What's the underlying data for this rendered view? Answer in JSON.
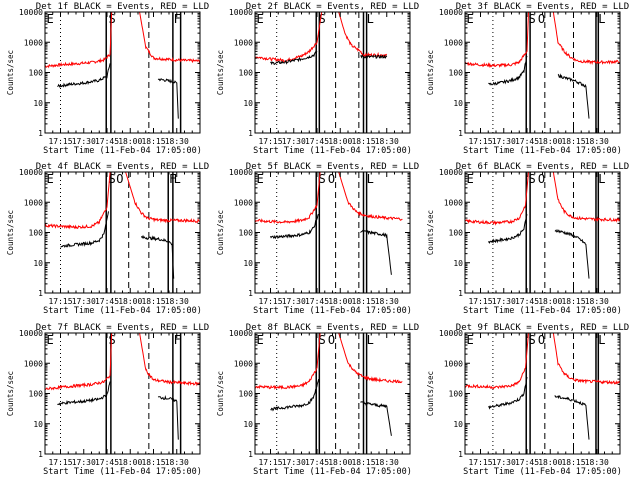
{
  "chart_data": {
    "type": "line",
    "layout": {
      "rows": 3,
      "cols": 3
    },
    "y_scale": "log",
    "ylim": [
      1,
      10000
    ],
    "y_ticks": [
      1,
      10,
      100,
      1000,
      10000
    ],
    "y_tick_labels": [
      "1",
      "10",
      "100",
      "1000",
      "10000"
    ],
    "x_tick_labels": [
      "17:15",
      "17:30",
      "17:45",
      "18:00",
      "18:15",
      "18:30"
    ],
    "x_tick_minutes": [
      0,
      15,
      30,
      45,
      60,
      75
    ],
    "x_range_minutes": [
      -10,
      90
    ],
    "xlabel": "Start Time (11-Feb-04 17:05:00)",
    "ylabel": "Counts/sec",
    "colors": {
      "events": "#000000",
      "lld": "#ff0000"
    },
    "event_marker_labels": [
      "E",
      "S",
      "F",
      "O"
    ],
    "panels": [
      {
        "title": "Det 1f BLACK = Events, RED = LLD",
        "markers": [
          "E",
          "S",
          "F"
        ],
        "series": [
          {
            "color": "#ff0000",
            "x": [
              -10,
              0,
              10,
              20,
              28,
              32,
              33
            ],
            "y": [
              160,
              180,
              195,
              215,
              260,
              400,
              10000
            ]
          },
          {
            "color": "#ff0000",
            "x": [
              51,
              55,
              60,
              70,
              80,
              90
            ],
            "y": [
              10000,
              700,
              300,
              270,
              250,
              240
            ]
          },
          {
            "color": "#000000",
            "x": [
              -2,
              5,
              15,
              25,
              30,
              32
            ],
            "y": [
              35,
              40,
              45,
              55,
              75,
              200
            ]
          },
          {
            "color": "#000000",
            "x": [
              63,
              68,
              72,
              75,
              76
            ],
            "y": [
              60,
              55,
              50,
              45,
              3
            ]
          }
        ]
      },
      {
        "title": "Det 2f BLACK = Events, RED = LLD",
        "markers": [
          "E",
          "S",
          "L"
        ],
        "series": [
          {
            "color": "#ff0000",
            "x": [
              -10,
              0,
              10,
              20,
              25,
              30,
              33
            ],
            "y": [
              330,
              280,
              250,
              350,
              500,
              1000,
              10000
            ]
          },
          {
            "color": "#ff0000",
            "x": [
              44,
              48,
              52,
              58,
              60,
              65,
              75
            ],
            "y": [
              10000,
              2000,
              800,
              500,
              380,
              380,
              380
            ]
          },
          {
            "color": "#000000",
            "x": [
              0,
              10,
              20,
              25,
              28,
              30
            ],
            "y": [
              200,
              220,
              280,
              330,
              380,
              500
            ]
          },
          {
            "color": "#000000",
            "x": [
              58,
              62,
              65,
              75
            ],
            "y": [
              350,
              330,
              330,
              330
            ]
          }
        ]
      },
      {
        "title": "Det 3f BLACK = Events, RED = LLD",
        "markers": [
          "E",
          "S",
          "O",
          "L"
        ],
        "series": [
          {
            "color": "#ff0000",
            "x": [
              -10,
              0,
              10,
              20,
              25,
              30,
              31
            ],
            "y": [
              200,
              180,
              170,
              180,
              220,
              500,
              10000
            ]
          },
          {
            "color": "#ff0000",
            "x": [
              47,
              50,
              54,
              58,
              62,
              66,
              72,
              80,
              90
            ],
            "y": [
              10000,
              1000,
              500,
              320,
              250,
              230,
              220,
              220,
              230
            ]
          },
          {
            "color": "#000000",
            "x": [
              5,
              12,
              20,
              25,
              28,
              30
            ],
            "y": [
              40,
              45,
              55,
              70,
              110,
              350
            ]
          },
          {
            "color": "#000000",
            "x": [
              50,
              55,
              60,
              64,
              66,
              68,
              70
            ],
            "y": [
              80,
              65,
              55,
              45,
              40,
              35,
              3
            ]
          }
        ]
      },
      {
        "title": "Det 4f BLACK = Events, RED = LLD",
        "markers": [
          "E",
          "S",
          "O",
          "F",
          "L"
        ],
        "series": [
          {
            "color": "#ff0000",
            "x": [
              -10,
              0,
              10,
              20,
              25,
              30,
              32
            ],
            "y": [
              170,
              160,
              150,
              160,
              220,
              700,
              10000
            ]
          },
          {
            "color": "#ff0000",
            "x": [
              42,
              48,
              52,
              56,
              62,
              70,
              80,
              90
            ],
            "y": [
              10000,
              1000,
              450,
              300,
              260,
              250,
              250,
              240
            ]
          },
          {
            "color": "#000000",
            "x": [
              0,
              10,
              20,
              25,
              28,
              31
            ],
            "y": [
              35,
              40,
              45,
              55,
              90,
              500
            ]
          },
          {
            "color": "#000000",
            "x": [
              52,
              58,
              64,
              70,
              72,
              73
            ],
            "y": [
              70,
              65,
              60,
              50,
              40,
              3
            ]
          }
        ]
      },
      {
        "title": "Det 5f BLACK = Events, RED = LLD",
        "markers": [
          "E",
          "S",
          "O",
          "L"
        ],
        "series": [
          {
            "color": "#ff0000",
            "x": [
              -10,
              0,
              10,
              20,
              25,
              30,
              32
            ],
            "y": [
              250,
              230,
              220,
              250,
              320,
              800,
              10000
            ]
          },
          {
            "color": "#ff0000",
            "x": [
              44,
              50,
              55,
              60,
              65,
              75,
              85
            ],
            "y": [
              10000,
              1000,
              500,
              380,
              340,
              300,
              280
            ]
          },
          {
            "color": "#000000",
            "x": [
              0,
              10,
              20,
              25,
              28,
              31
            ],
            "y": [
              70,
              75,
              85,
              100,
              150,
              400
            ]
          },
          {
            "color": "#000000",
            "x": [
              58,
              64,
              70,
              75,
              78
            ],
            "y": [
              110,
              100,
              90,
              80,
              4
            ]
          }
        ]
      },
      {
        "title": "Det 6f BLACK = Events, RED = LLD",
        "markers": [
          "E",
          "S",
          "O",
          "L"
        ],
        "series": [
          {
            "color": "#ff0000",
            "x": [
              -10,
              0,
              10,
              20,
              25,
              29,
              31
            ],
            "y": [
              240,
              220,
              210,
              230,
              300,
              800,
              10000
            ]
          },
          {
            "color": "#ff0000",
            "x": [
              47,
              50,
              54,
              58,
              62,
              70,
              80,
              90
            ],
            "y": [
              10000,
              1200,
              500,
              350,
              300,
              280,
              270,
              260
            ]
          },
          {
            "color": "#000000",
            "x": [
              5,
              12,
              20,
              25,
              28,
              30
            ],
            "y": [
              50,
              55,
              65,
              85,
              130,
              400
            ]
          },
          {
            "color": "#000000",
            "x": [
              48,
              54,
              60,
              64,
              66,
              68,
              70
            ],
            "y": [
              120,
              100,
              80,
              60,
              50,
              40,
              3
            ]
          }
        ]
      },
      {
        "title": "Det 7f BLACK = Events, RED = LLD",
        "markers": [
          "E",
          "S",
          "F"
        ],
        "series": [
          {
            "color": "#ff0000",
            "x": [
              -10,
              0,
              10,
              20,
              28,
              32,
              33
            ],
            "y": [
              140,
              160,
              180,
              200,
              240,
              400,
              10000
            ]
          },
          {
            "color": "#ff0000",
            "x": [
              51,
              55,
              60,
              70,
              80,
              90
            ],
            "y": [
              10000,
              600,
              280,
              240,
              220,
              210
            ]
          },
          {
            "color": "#000000",
            "x": [
              -2,
              5,
              15,
              25,
              30,
              32
            ],
            "y": [
              45,
              50,
              55,
              65,
              90,
              250
            ]
          },
          {
            "color": "#000000",
            "x": [
              63,
              68,
              72,
              75,
              76
            ],
            "y": [
              75,
              70,
              65,
              55,
              3
            ]
          }
        ]
      },
      {
        "title": "Det 8f BLACK = Events, RED = LLD",
        "markers": [
          "E",
          "S",
          "O",
          "L"
        ],
        "series": [
          {
            "color": "#ff0000",
            "x": [
              -10,
              0,
              10,
              20,
              25,
              30,
              32
            ],
            "y": [
              170,
              160,
              160,
              180,
              250,
              700,
              10000
            ]
          },
          {
            "color": "#ff0000",
            "x": [
              44,
              50,
              55,
              60,
              65,
              75,
              85
            ],
            "y": [
              10000,
              1000,
              500,
              350,
              300,
              260,
              250
            ]
          },
          {
            "color": "#000000",
            "x": [
              0,
              10,
              20,
              25,
              28,
              31
            ],
            "y": [
              30,
              35,
              40,
              50,
              80,
              300
            ]
          },
          {
            "color": "#000000",
            "x": [
              58,
              64,
              70,
              75,
              78
            ],
            "y": [
              50,
              45,
              40,
              38,
              4
            ]
          }
        ]
      },
      {
        "title": "Det 9f BLACK = Events, RED = LLD",
        "markers": [
          "E",
          "S",
          "O",
          "L"
        ],
        "series": [
          {
            "color": "#ff0000",
            "x": [
              -10,
              0,
              10,
              20,
              25,
              29,
              31
            ],
            "y": [
              180,
              170,
              160,
              180,
              240,
              700,
              10000
            ]
          },
          {
            "color": "#ff0000",
            "x": [
              47,
              50,
              54,
              58,
              62,
              70,
              80,
              90
            ],
            "y": [
              10000,
              1000,
              450,
              320,
              270,
              250,
              240,
              230
            ]
          },
          {
            "color": "#000000",
            "x": [
              5,
              12,
              20,
              25,
              28,
              30
            ],
            "y": [
              35,
              40,
              50,
              65,
              100,
              350
            ]
          },
          {
            "color": "#000000",
            "x": [
              48,
              54,
              60,
              64,
              66,
              68,
              70
            ],
            "y": [
              80,
              70,
              60,
              50,
              45,
              40,
              3
            ]
          }
        ]
      }
    ]
  }
}
